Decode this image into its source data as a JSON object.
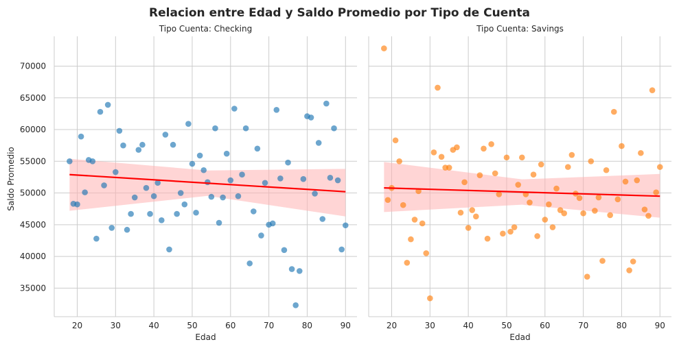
{
  "chart_data": {
    "type": "scatter",
    "title": "Relacion entre Edad y Saldo Promedio por Tipo de Cuenta",
    "xlabel": "Edad",
    "ylabel": "Saldo Promedio",
    "xlim": [
      14,
      93
    ],
    "ylim": [
      30500,
      74700
    ],
    "x_ticks": [
      20,
      30,
      40,
      50,
      60,
      70,
      80,
      90
    ],
    "y_ticks": [
      35000,
      40000,
      45000,
      50000,
      55000,
      60000,
      65000,
      70000
    ],
    "grid": true,
    "legend": "none",
    "facets": [
      {
        "subtitle": "Tipo Cuenta: Checking",
        "color": "#1f77b4",
        "regression": {
          "x": [
            18,
            90
          ],
          "y": [
            52900,
            50200
          ],
          "ci_lower": [
            47200,
            46300
          ],
          "ci_upper": [
            55400,
            53800
          ],
          "color": "#ff0000",
          "ci_color": "#ffb3b3"
        },
        "points": [
          {
            "x": 18,
            "y": 55000
          },
          {
            "x": 19,
            "y": 48300
          },
          {
            "x": 20,
            "y": 48200
          },
          {
            "x": 21,
            "y": 58900
          },
          {
            "x": 22,
            "y": 50100
          },
          {
            "x": 23,
            "y": 55200
          },
          {
            "x": 24,
            "y": 55000
          },
          {
            "x": 25,
            "y": 42800
          },
          {
            "x": 26,
            "y": 62800
          },
          {
            "x": 27,
            "y": 51200
          },
          {
            "x": 28,
            "y": 63900
          },
          {
            "x": 29,
            "y": 44500
          },
          {
            "x": 30,
            "y": 53300
          },
          {
            "x": 31,
            "y": 59800
          },
          {
            "x": 32,
            "y": 57500
          },
          {
            "x": 33,
            "y": 44200
          },
          {
            "x": 34,
            "y": 46700
          },
          {
            "x": 35,
            "y": 49300
          },
          {
            "x": 36,
            "y": 56800
          },
          {
            "x": 37,
            "y": 57600
          },
          {
            "x": 38,
            "y": 50800
          },
          {
            "x": 39,
            "y": 46700
          },
          {
            "x": 40,
            "y": 49500
          },
          {
            "x": 41,
            "y": 51600
          },
          {
            "x": 42,
            "y": 45700
          },
          {
            "x": 43,
            "y": 59200
          },
          {
            "x": 44,
            "y": 41100
          },
          {
            "x": 45,
            "y": 57600
          },
          {
            "x": 46,
            "y": 46700
          },
          {
            "x": 47,
            "y": 50000
          },
          {
            "x": 48,
            "y": 48200
          },
          {
            "x": 49,
            "y": 60900
          },
          {
            "x": 50,
            "y": 54600
          },
          {
            "x": 51,
            "y": 46900
          },
          {
            "x": 52,
            "y": 55900
          },
          {
            "x": 53,
            "y": 53600
          },
          {
            "x": 54,
            "y": 51700
          },
          {
            "x": 55,
            "y": 49400
          },
          {
            "x": 56,
            "y": 60200
          },
          {
            "x": 57,
            "y": 45300
          },
          {
            "x": 58,
            "y": 49300
          },
          {
            "x": 59,
            "y": 56200
          },
          {
            "x": 60,
            "y": 52000
          },
          {
            "x": 61,
            "y": 63300
          },
          {
            "x": 62,
            "y": 49500
          },
          {
            "x": 63,
            "y": 52900
          },
          {
            "x": 64,
            "y": 60200
          },
          {
            "x": 65,
            "y": 38900
          },
          {
            "x": 66,
            "y": 47100
          },
          {
            "x": 67,
            "y": 57000
          },
          {
            "x": 68,
            "y": 43300
          },
          {
            "x": 69,
            "y": 51600
          },
          {
            "x": 70,
            "y": 45000
          },
          {
            "x": 71,
            "y": 45200
          },
          {
            "x": 72,
            "y": 63100
          },
          {
            "x": 73,
            "y": 52300
          },
          {
            "x": 74,
            "y": 41000
          },
          {
            "x": 75,
            "y": 54800
          },
          {
            "x": 76,
            "y": 38000
          },
          {
            "x": 77,
            "y": 32300
          },
          {
            "x": 78,
            "y": 37700
          },
          {
            "x": 79,
            "y": 52200
          },
          {
            "x": 80,
            "y": 62100
          },
          {
            "x": 81,
            "y": 61900
          },
          {
            "x": 82,
            "y": 49900
          },
          {
            "x": 83,
            "y": 57900
          },
          {
            "x": 84,
            "y": 45900
          },
          {
            "x": 85,
            "y": 64100
          },
          {
            "x": 86,
            "y": 52400
          },
          {
            "x": 87,
            "y": 60200
          },
          {
            "x": 88,
            "y": 52000
          },
          {
            "x": 89,
            "y": 41100
          },
          {
            "x": 90,
            "y": 44900
          }
        ]
      },
      {
        "subtitle": "Tipo Cuenta: Savings",
        "color": "#ff7f0e",
        "regression": {
          "x": [
            18,
            90
          ],
          "y": [
            50800,
            49500
          ],
          "ci_lower": [
            47000,
            46100
          ],
          "ci_upper": [
            54900,
            53000
          ],
          "color": "#ff0000",
          "ci_color": "#ffb3b3"
        },
        "points": [
          {
            "x": 18,
            "y": 72800
          },
          {
            "x": 19,
            "y": 48900
          },
          {
            "x": 20,
            "y": 50800
          },
          {
            "x": 21,
            "y": 58300
          },
          {
            "x": 22,
            "y": 55000
          },
          {
            "x": 23,
            "y": 48100
          },
          {
            "x": 24,
            "y": 39000
          },
          {
            "x": 25,
            "y": 42700
          },
          {
            "x": 26,
            "y": 45800
          },
          {
            "x": 27,
            "y": 50300
          },
          {
            "x": 28,
            "y": 45200
          },
          {
            "x": 29,
            "y": 40500
          },
          {
            "x": 30,
            "y": 33400
          },
          {
            "x": 31,
            "y": 56400
          },
          {
            "x": 32,
            "y": 66600
          },
          {
            "x": 33,
            "y": 55700
          },
          {
            "x": 34,
            "y": 54000
          },
          {
            "x": 35,
            "y": 54000
          },
          {
            "x": 36,
            "y": 56800
          },
          {
            "x": 37,
            "y": 57200
          },
          {
            "x": 38,
            "y": 46900
          },
          {
            "x": 39,
            "y": 51700
          },
          {
            "x": 40,
            "y": 44500
          },
          {
            "x": 41,
            "y": 47300
          },
          {
            "x": 42,
            "y": 46300
          },
          {
            "x": 43,
            "y": 52800
          },
          {
            "x": 44,
            "y": 57000
          },
          {
            "x": 45,
            "y": 42800
          },
          {
            "x": 46,
            "y": 57700
          },
          {
            "x": 47,
            "y": 53100
          },
          {
            "x": 48,
            "y": 49800
          },
          {
            "x": 49,
            "y": 43600
          },
          {
            "x": 50,
            "y": 55600
          },
          {
            "x": 51,
            "y": 43900
          },
          {
            "x": 52,
            "y": 44600
          },
          {
            "x": 53,
            "y": 51300
          },
          {
            "x": 54,
            "y": 55600
          },
          {
            "x": 55,
            "y": 49800
          },
          {
            "x": 56,
            "y": 48500
          },
          {
            "x": 57,
            "y": 52900
          },
          {
            "x": 58,
            "y": 43200
          },
          {
            "x": 59,
            "y": 54500
          },
          {
            "x": 60,
            "y": 45800
          },
          {
            "x": 61,
            "y": 48200
          },
          {
            "x": 62,
            "y": 44600
          },
          {
            "x": 63,
            "y": 50700
          },
          {
            "x": 64,
            "y": 47300
          },
          {
            "x": 65,
            "y": 46800
          },
          {
            "x": 66,
            "y": 54100
          },
          {
            "x": 67,
            "y": 56000
          },
          {
            "x": 68,
            "y": 49900
          },
          {
            "x": 69,
            "y": 49200
          },
          {
            "x": 70,
            "y": 46800
          },
          {
            "x": 71,
            "y": 36800
          },
          {
            "x": 72,
            "y": 55000
          },
          {
            "x": 73,
            "y": 47200
          },
          {
            "x": 74,
            "y": 49300
          },
          {
            "x": 75,
            "y": 39300
          },
          {
            "x": 76,
            "y": 53600
          },
          {
            "x": 77,
            "y": 46500
          },
          {
            "x": 78,
            "y": 62800
          },
          {
            "x": 79,
            "y": 49000
          },
          {
            "x": 80,
            "y": 57400
          },
          {
            "x": 81,
            "y": 51800
          },
          {
            "x": 82,
            "y": 37800
          },
          {
            "x": 83,
            "y": 39200
          },
          {
            "x": 84,
            "y": 52000
          },
          {
            "x": 85,
            "y": 56300
          },
          {
            "x": 86,
            "y": 47400
          },
          {
            "x": 87,
            "y": 46400
          },
          {
            "x": 88,
            "y": 66200
          },
          {
            "x": 89,
            "y": 50100
          },
          {
            "x": 90,
            "y": 54100
          }
        ]
      }
    ]
  }
}
